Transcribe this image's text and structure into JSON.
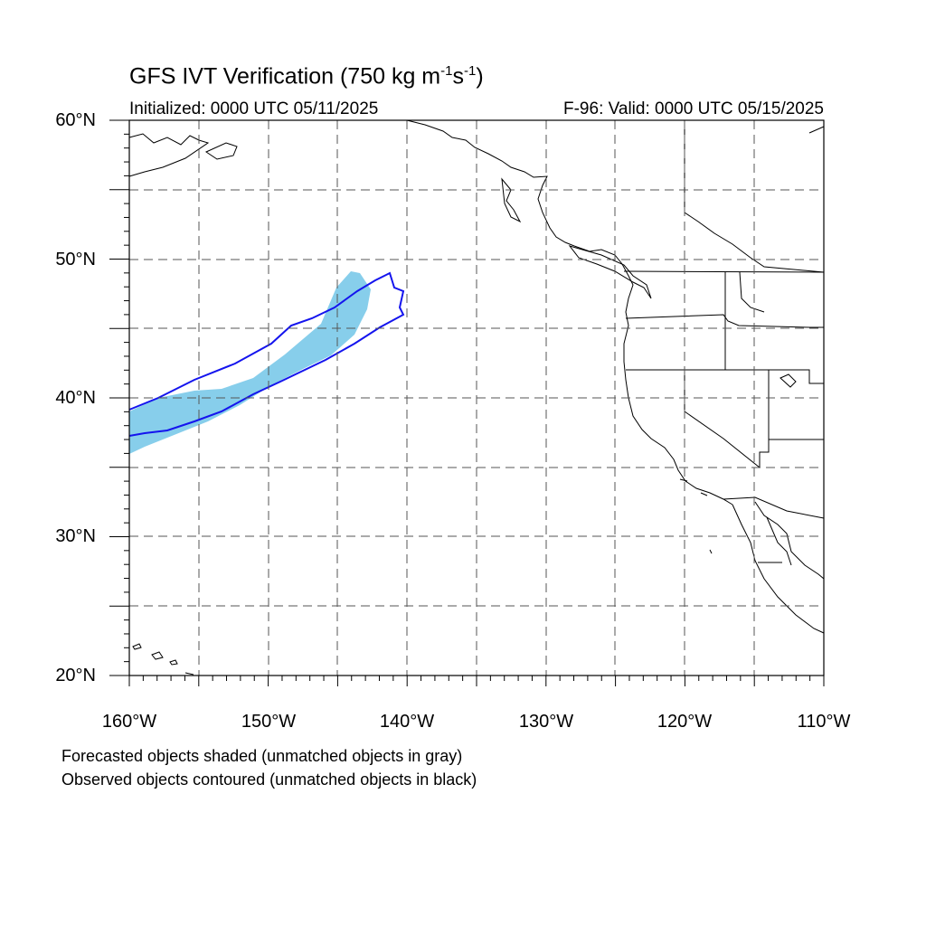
{
  "title_main": "GFS IVT Verification (750 kg m",
  "title_sup1": "-1",
  "title_mid": "s",
  "title_sup2": "-1",
  "title_end": ")",
  "init_label": "Initialized: 0000 UTC 05/11/2025",
  "valid_label": "F-96: Valid: 0000 UTC 05/15/2025",
  "lat_ticks": [
    "60°N",
    "50°N",
    "40°N",
    "30°N",
    "20°N"
  ],
  "lon_ticks": [
    "160°W",
    "150°W",
    "140°W",
    "130°W",
    "120°W",
    "110°W"
  ],
  "notes": [
    "Forecasted objects shaded (unmatched objects in gray)",
    "Observed objects contoured (unmatched objects in black)"
  ],
  "colors": {
    "forecast_fill": "#87ceeb",
    "observed_contour": "#1414ee",
    "coastline": "#000000",
    "grid": "#555555"
  },
  "map_extent": {
    "lon_min": -160,
    "lon_max": -110,
    "lat_min": 20,
    "lat_max": 60
  }
}
